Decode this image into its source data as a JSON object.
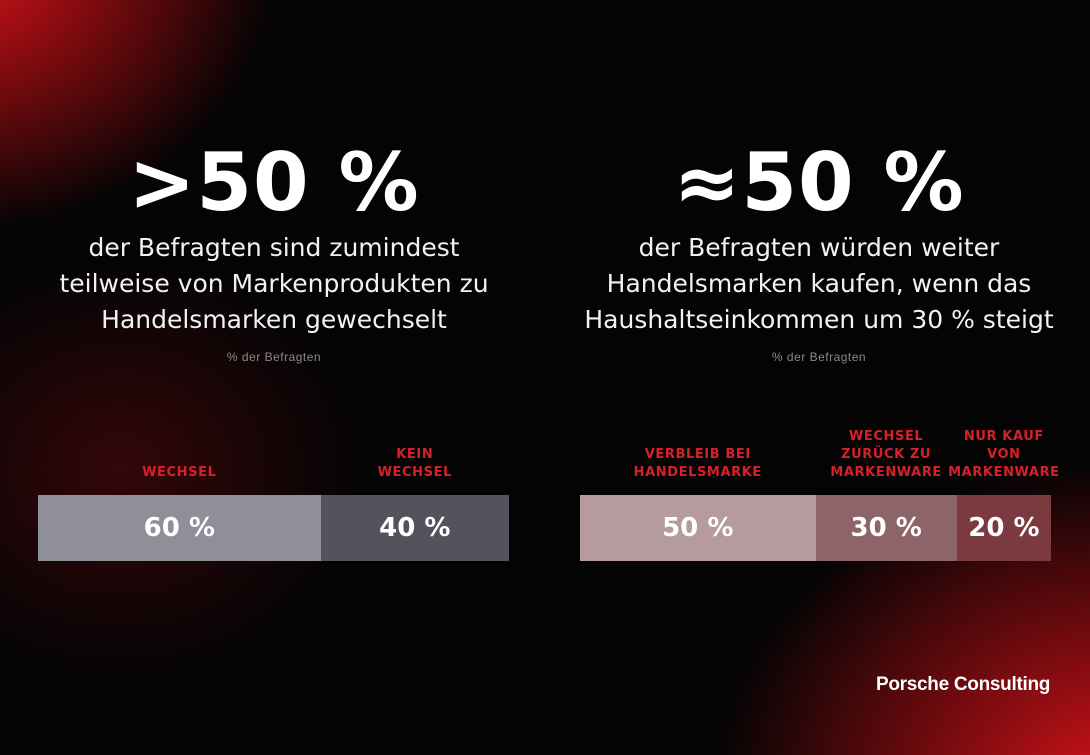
{
  "left": {
    "headline": ">50 %",
    "description": "der Befragten sind zumindest\nteilweise von Markenprodukten zu\nHandelsmarken gewechselt",
    "caption": "% der Befragten"
  },
  "right": {
    "headline": "≈50 %",
    "description": "der Befragten würden weiter\nHandelsmarken kaufen, wenn das\nHaushaltseinkommen um 30 % steigt",
    "caption": "% der Befragten"
  },
  "brand": "Porsche Consulting",
  "chart_data": [
    {
      "type": "bar",
      "stacked": true,
      "orientation": "horizontal",
      "categories": [
        "WECHSEL",
        "KEIN WECHSEL"
      ],
      "values": [
        60,
        40
      ],
      "value_labels": [
        "60 %",
        "40 %"
      ],
      "segment_colors": [
        "#8e8f99",
        "#55525d"
      ]
    },
    {
      "type": "bar",
      "stacked": true,
      "orientation": "horizontal",
      "categories": [
        "VERBLEIB BEI HANDELSMARKE",
        "WECHSEL ZURÜCK ZU MARKENWARE",
        "NUR KAUF VON MARKENWARE"
      ],
      "values": [
        50,
        30,
        20
      ],
      "value_labels": [
        "50 %",
        "30 %",
        "20 %"
      ],
      "segment_colors": [
        "#b59b9f",
        "#8d6468",
        "#7a3a40"
      ]
    }
  ],
  "segment_labels": {
    "left": [
      "WECHSEL",
      "KEIN\nWECHSEL"
    ],
    "right": [
      "VERBLEIB BEI\nHANDELSMARKE",
      "WECHSEL\nZURÜCK ZU\nMARKENWARE",
      "NUR KAUF\nVON\nMARKENWARE"
    ]
  },
  "accent_color": "#d8202a"
}
